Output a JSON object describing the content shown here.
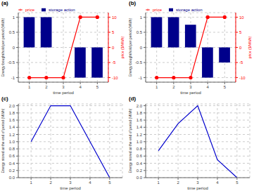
{
  "chart_data": [
    {
      "type": "bar",
      "title": "(a)",
      "x": [
        1,
        2,
        3,
        4,
        5
      ],
      "xlabel": "time period",
      "ylabel": "Energy bought/sold per period (MWh)",
      "y2label": "price ($/MWh)",
      "xlim": [
        0.35,
        5.65
      ],
      "xticks": [
        1,
        2,
        3,
        4,
        5
      ],
      "ylim": [
        -1.15,
        1.15
      ],
      "yticks": [
        -1,
        -0.5,
        0,
        0.5,
        1
      ],
      "y2lim": [
        -11.5,
        11.5
      ],
      "y2ticks": [
        -10,
        -5,
        0,
        5,
        10
      ],
      "grid": true,
      "legend": "upper left",
      "series": [
        {
          "name": "storage action",
          "type": "bar",
          "color": "#00008B",
          "values": [
            1,
            1,
            0,
            -1,
            -1
          ]
        },
        {
          "name": "price",
          "type": "line",
          "color": "#FF0000",
          "marker": "o",
          "axis": "y2",
          "values": [
            -10,
            -10,
            -10,
            10,
            10
          ]
        }
      ]
    },
    {
      "type": "bar",
      "title": "(b)",
      "x": [
        1,
        2,
        3,
        4,
        5
      ],
      "xlabel": "time period",
      "ylabel": "Energy bought/sold per period (MWh)",
      "y2label": "price ($/MWh)",
      "xlim": [
        0.35,
        5.65
      ],
      "xticks": [
        1,
        2,
        3,
        4,
        5
      ],
      "ylim": [
        -1.15,
        1.15
      ],
      "yticks": [
        -1,
        -0.5,
        0,
        0.5,
        1
      ],
      "y2lim": [
        -11.5,
        11.5
      ],
      "y2ticks": [
        -10,
        -5,
        0,
        5,
        10
      ],
      "grid": true,
      "legend": "upper left",
      "series": [
        {
          "name": "storage action",
          "type": "bar",
          "color": "#00008B",
          "values": [
            1,
            1,
            0.75,
            -1,
            -0.5
          ]
        },
        {
          "name": "price",
          "type": "line",
          "color": "#FF0000",
          "marker": "o",
          "axis": "y2",
          "values": [
            -10,
            -10,
            -10,
            10,
            10
          ]
        }
      ]
    },
    {
      "type": "line",
      "title": "(c)",
      "x": [
        1,
        2,
        3,
        4,
        5
      ],
      "xlabel": "time period",
      "ylabel": "Energy stored at the end of period (MWh)",
      "xlim": [
        0.35,
        5.65
      ],
      "xticks": [
        1,
        2,
        3,
        4,
        5
      ],
      "ylim": [
        0,
        2.05
      ],
      "yticks": [
        {
          "value": 0,
          "label": "0.0"
        },
        0.2,
        0.4,
        0.6,
        0.8,
        {
          "value": 1.0,
          "label": "1.0"
        },
        1.2,
        1.4,
        1.6,
        1.8,
        {
          "value": 2.0,
          "label": "2.0"
        }
      ],
      "grid": true,
      "color": "#0000CD",
      "values": [
        1,
        2,
        2,
        1,
        0
      ]
    },
    {
      "type": "line",
      "title": "(d)",
      "x": [
        1,
        2,
        3,
        4,
        5
      ],
      "xlabel": "time period",
      "ylabel": "Energy stored at the end of period (MWh)",
      "xlim": [
        0.35,
        5.65
      ],
      "xticks": [
        1,
        2,
        3,
        4,
        5
      ],
      "ylim": [
        0,
        2.05
      ],
      "yticks": [
        {
          "value": 0,
          "label": "0.0"
        },
        0.2,
        0.4,
        0.6,
        0.8,
        {
          "value": 1.0,
          "label": "1.0"
        },
        1.2,
        1.4,
        1.6,
        1.8,
        {
          "value": 2.0,
          "label": "2.0"
        }
      ],
      "grid": true,
      "color": "#0000CD",
      "values": [
        0.75,
        1.5,
        2.0,
        0.5,
        0.0
      ]
    }
  ]
}
